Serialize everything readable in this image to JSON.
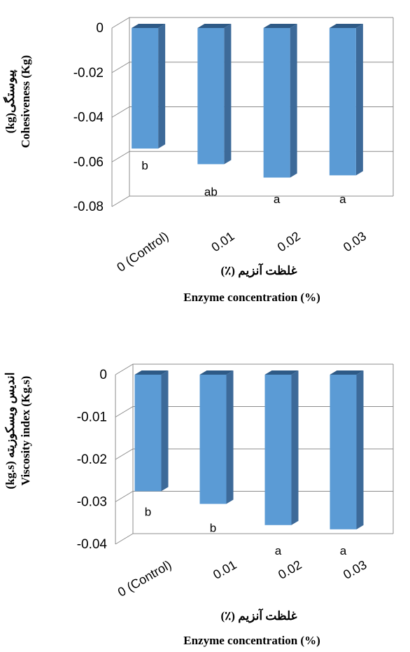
{
  "charts": [
    {
      "y_label_fa": "(kg)پیوستگی",
      "y_label_en": "Cohesiveness (Kg)",
      "x_label_fa": "غلظت آنزیم (٪)",
      "x_label_en": "Enzyme concentration (%)"
    },
    {
      "y_label_fa": "(kg.s) اندیس ویسکوزیته",
      "y_label_en": "Viscosity index (Kg.s)",
      "x_label_fa": "غلظت آنزیم (٪)",
      "x_label_en": "Enzyme concentration (%)"
    }
  ],
  "chart_data": [
    {
      "type": "bar",
      "categories": [
        "0 (Control)",
        "0.01",
        "0.02",
        "0.03"
      ],
      "values": [
        -0.054,
        -0.061,
        -0.067,
        -0.066
      ],
      "significance_letters": [
        "b",
        "ab",
        "a",
        "a"
      ],
      "yticks": [
        "0",
        "-0.02",
        "-0.04",
        "-0.06",
        "-0.08"
      ],
      "ylim": [
        -0.08,
        0
      ],
      "xlabel": "Enzyme concentration (%)",
      "ylabel": "Cohesiveness (Kg)",
      "grid": true,
      "bar_color": "#5b9bd5",
      "bar_side_color": "#3d6a99",
      "bar_top_color": "#2e5a86"
    },
    {
      "type": "bar",
      "categories": [
        "0 (Control)",
        "0.01",
        "0.02",
        "0.03"
      ],
      "values": [
        -0.0275,
        -0.0305,
        -0.0355,
        -0.0365
      ],
      "significance_letters": [
        "b",
        "b",
        "a",
        "a"
      ],
      "yticks": [
        "0",
        "-0.01",
        "-0.02",
        "-0.03",
        "-0.04"
      ],
      "ylim": [
        -0.04,
        0
      ],
      "xlabel": "Enzyme concentration (%)",
      "ylabel": "Viscosity index (Kg.s)",
      "grid": true,
      "bar_color": "#5b9bd5",
      "bar_side_color": "#3d6a99",
      "bar_top_color": "#2e5a86"
    }
  ]
}
